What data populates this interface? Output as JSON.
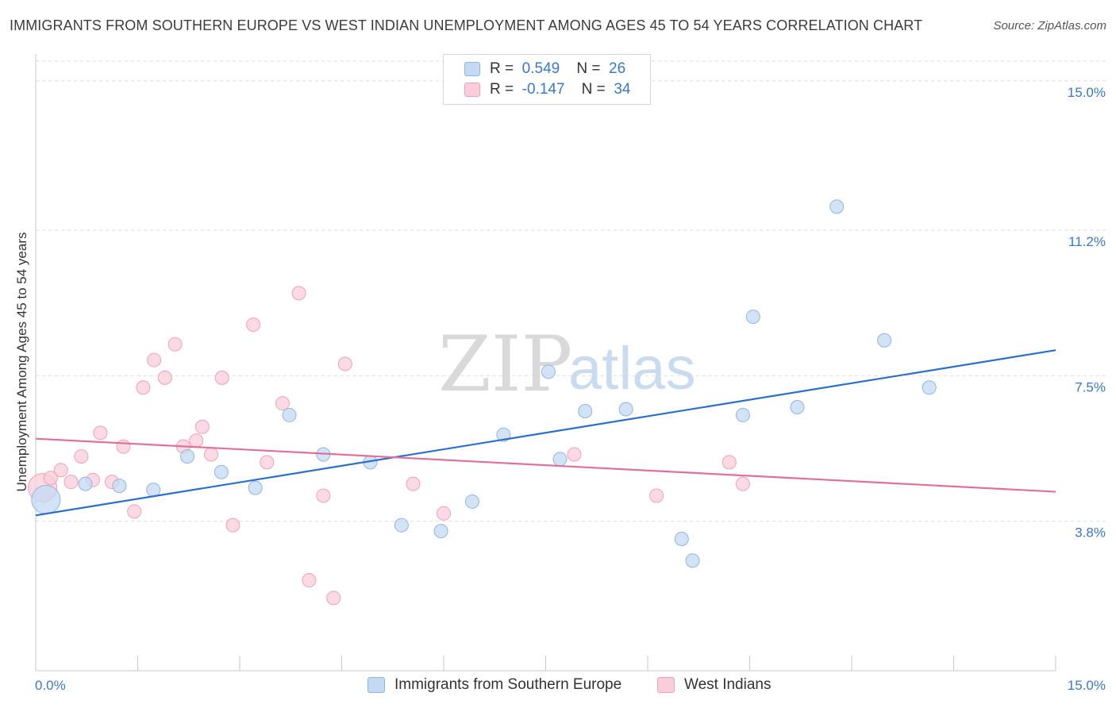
{
  "header": {
    "title": "IMMIGRANTS FROM SOUTHERN EUROPE VS WEST INDIAN UNEMPLOYMENT AMONG AGES 45 TO 54 YEARS CORRELATION CHART",
    "source": "Source: ZipAtlas.com"
  },
  "watermark": {
    "zip": "ZIP",
    "atlas": "atlas"
  },
  "legend_top": {
    "rows": [
      {
        "r_label": "R =",
        "r_value": "0.549",
        "n_label": "N =",
        "n_value": "26"
      },
      {
        "r_label": "R =",
        "r_value": "-0.147",
        "n_label": "N =",
        "n_value": "34"
      }
    ]
  },
  "legend_bottom": {
    "items": [
      {
        "label": "Immigrants from Southern Europe"
      },
      {
        "label": "West Indians"
      }
    ]
  },
  "colors": {
    "blue_fill": "#c4d9f3",
    "blue_stroke": "#8fb5e3",
    "blue_line": "#2a6fce",
    "pink_fill": "#f9cdd9",
    "pink_stroke": "#eda2b8",
    "pink_line": "#e0709a",
    "tick_label": "#3a78c9",
    "grid": "#dddddd"
  },
  "chart_data": {
    "type": "scatter",
    "title": "IMMIGRANTS FROM SOUTHERN EUROPE VS WEST INDIAN UNEMPLOYMENT AMONG AGES 45 TO 54 YEARS CORRELATION CHART",
    "xlabel": "",
    "ylabel": "Unemployment Among Ages 45 to 54 years",
    "xlim": [
      0,
      15
    ],
    "ylim": [
      0,
      15.5
    ],
    "x_tick_labels": [
      "0.0%",
      "15.0%"
    ],
    "y_ticks": [
      3.8,
      7.5,
      11.2,
      15.0
    ],
    "y_tick_labels": [
      "3.8%",
      "7.5%",
      "11.2%",
      "15.0%"
    ],
    "grid": true,
    "legend_position": "top-center",
    "series": [
      {
        "name": "Immigrants from Southern Europe",
        "r": 0.549,
        "n": 26,
        "trend": {
          "x0": 0.0,
          "y0": 3.95,
          "x1": 15.0,
          "y1": 8.15
        },
        "points": [
          {
            "x": 0.15,
            "y": 4.35,
            "big": true
          },
          {
            "x": 0.73,
            "y": 4.75
          },
          {
            "x": 1.23,
            "y": 4.7
          },
          {
            "x": 1.73,
            "y": 4.6
          },
          {
            "x": 2.23,
            "y": 5.45
          },
          {
            "x": 2.73,
            "y": 5.05
          },
          {
            "x": 3.23,
            "y": 4.65
          },
          {
            "x": 3.73,
            "y": 6.5
          },
          {
            "x": 4.23,
            "y": 5.5
          },
          {
            "x": 4.92,
            "y": 5.3
          },
          {
            "x": 5.38,
            "y": 3.7
          },
          {
            "x": 5.96,
            "y": 3.55
          },
          {
            "x": 6.42,
            "y": 4.3
          },
          {
            "x": 6.88,
            "y": 6.0
          },
          {
            "x": 7.54,
            "y": 7.6
          },
          {
            "x": 7.71,
            "y": 5.38
          },
          {
            "x": 8.08,
            "y": 6.6
          },
          {
            "x": 8.68,
            "y": 6.65
          },
          {
            "x": 9.5,
            "y": 3.35
          },
          {
            "x": 9.66,
            "y": 2.8
          },
          {
            "x": 10.4,
            "y": 6.5
          },
          {
            "x": 10.55,
            "y": 9.0
          },
          {
            "x": 11.2,
            "y": 6.7
          },
          {
            "x": 11.78,
            "y": 11.8
          },
          {
            "x": 12.48,
            "y": 8.4
          },
          {
            "x": 13.14,
            "y": 7.2
          }
        ]
      },
      {
        "name": "West Indians",
        "r": -0.147,
        "n": 34,
        "trend": {
          "x0": 0.0,
          "y0": 5.9,
          "x1": 15.0,
          "y1": 4.55
        },
        "points": [
          {
            "x": 0.1,
            "y": 4.65,
            "big": true
          },
          {
            "x": 0.22,
            "y": 4.9
          },
          {
            "x": 0.37,
            "y": 5.1
          },
          {
            "x": 0.52,
            "y": 4.8
          },
          {
            "x": 0.67,
            "y": 5.45
          },
          {
            "x": 0.84,
            "y": 4.85
          },
          {
            "x": 0.95,
            "y": 6.05
          },
          {
            "x": 1.12,
            "y": 4.8
          },
          {
            "x": 1.29,
            "y": 5.7
          },
          {
            "x": 1.45,
            "y": 4.05
          },
          {
            "x": 1.58,
            "y": 7.2
          },
          {
            "x": 1.74,
            "y": 7.9
          },
          {
            "x": 1.9,
            "y": 7.45
          },
          {
            "x": 2.05,
            "y": 8.3
          },
          {
            "x": 2.17,
            "y": 5.7
          },
          {
            "x": 2.36,
            "y": 5.85
          },
          {
            "x": 2.45,
            "y": 6.2
          },
          {
            "x": 2.58,
            "y": 5.5
          },
          {
            "x": 2.74,
            "y": 7.45
          },
          {
            "x": 2.9,
            "y": 3.7
          },
          {
            "x": 3.2,
            "y": 8.8
          },
          {
            "x": 3.4,
            "y": 5.3
          },
          {
            "x": 3.63,
            "y": 6.8
          },
          {
            "x": 3.87,
            "y": 9.6
          },
          {
            "x": 4.02,
            "y": 2.3
          },
          {
            "x": 4.23,
            "y": 4.45
          },
          {
            "x": 4.38,
            "y": 1.85
          },
          {
            "x": 4.55,
            "y": 7.8
          },
          {
            "x": 5.55,
            "y": 4.75
          },
          {
            "x": 6.0,
            "y": 4.0
          },
          {
            "x": 7.92,
            "y": 5.5
          },
          {
            "x": 9.13,
            "y": 4.45
          },
          {
            "x": 10.2,
            "y": 5.3
          },
          {
            "x": 10.4,
            "y": 4.75
          }
        ]
      }
    ]
  }
}
